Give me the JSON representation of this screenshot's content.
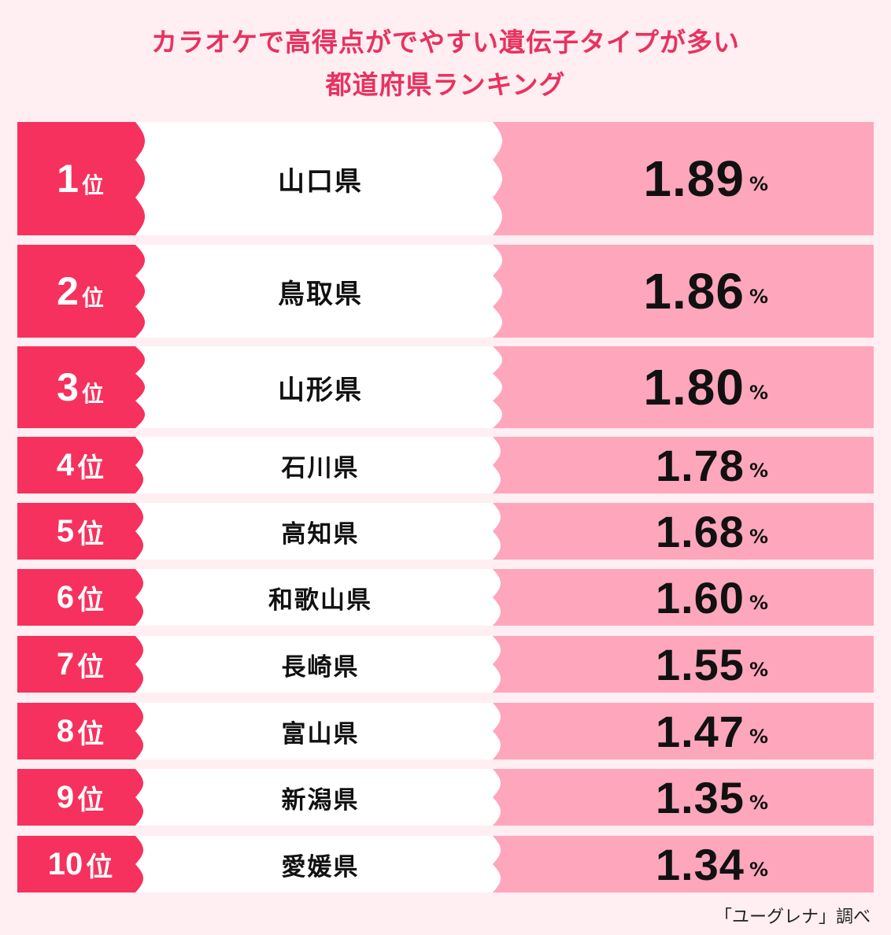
{
  "title_line1": "カラオケで高得点がでやすい遺伝子タイプが多い",
  "title_line2": "都道府県ランキング",
  "colors": {
    "background": "#ffeef2",
    "rank_cell": "#f6315d",
    "name_cell": "#ffffff",
    "value_cell": "#fea6bc",
    "title": "#e8325f"
  },
  "chart_data": {
    "type": "table",
    "unit": "%",
    "rank_suffix": "位",
    "rows": [
      {
        "rank": "1",
        "prefecture": "山口県",
        "value": "1.89"
      },
      {
        "rank": "2",
        "prefecture": "鳥取県",
        "value": "1.86"
      },
      {
        "rank": "3",
        "prefecture": "山形県",
        "value": "1.80"
      },
      {
        "rank": "4",
        "prefecture": "石川県",
        "value": "1.78"
      },
      {
        "rank": "5",
        "prefecture": "高知県",
        "value": "1.68"
      },
      {
        "rank": "6",
        "prefecture": "和歌山県",
        "value": "1.60"
      },
      {
        "rank": "7",
        "prefecture": "長崎県",
        "value": "1.55"
      },
      {
        "rank": "8",
        "prefecture": "富山県",
        "value": "1.47"
      },
      {
        "rank": "9",
        "prefecture": "新潟県",
        "value": "1.35"
      },
      {
        "rank": "10",
        "prefecture": "愛媛県",
        "value": "1.34"
      }
    ]
  },
  "source": "「ユーグレナ」調べ"
}
